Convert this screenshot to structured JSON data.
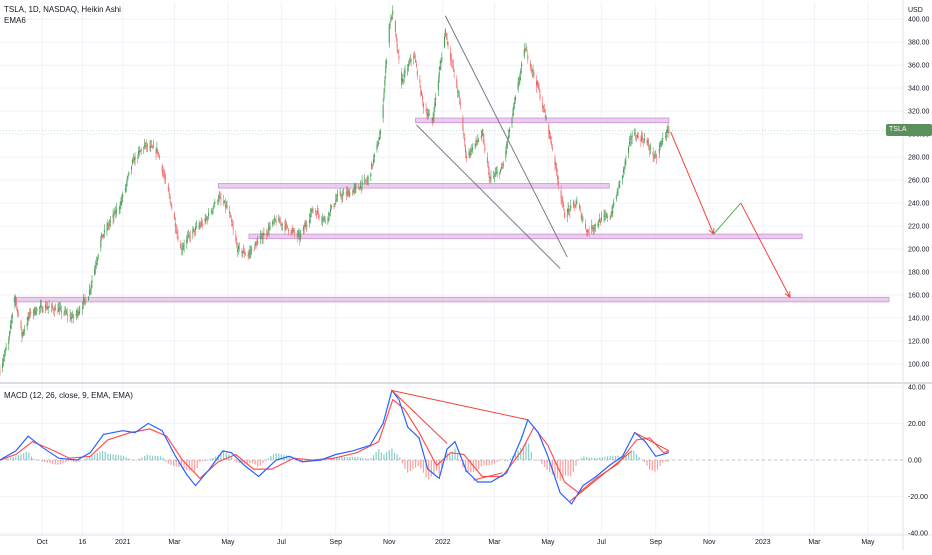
{
  "header": {
    "symbol_line": "TSLA, 1D, NASDAQ, Heikin Ashi",
    "ema_label": "EMA6",
    "macd_label": "MACD (12, 26, close, 9, EMA, EMA)"
  },
  "price_badge": {
    "symbol": "TSLA",
    "value": "303.35",
    "value_num": 303.35
  },
  "colors": {
    "up": "#3f9b4e",
    "down": "#ef6b6b",
    "zone_fill": "#e1bee7",
    "zone_stroke": "#ce93d8",
    "trend_line": "#787b86",
    "projection": "#f44336",
    "projection_up": "#4caf50",
    "macd_line": "#2962ff",
    "signal_line": "#ff5252",
    "grid": "#f0f3fa"
  },
  "chart_data": {
    "type": "candlestick",
    "chart_style": "Heikin Ashi",
    "currency_label": "USD",
    "price_axis": {
      "range": [
        86,
        415
      ],
      "ticks": [
        100,
        120,
        140,
        160,
        180,
        200,
        220,
        240,
        260,
        280,
        300,
        320,
        340,
        360,
        380,
        400
      ],
      "tick_labels": [
        "100.00",
        "120.00",
        "140.00",
        "160.00",
        "180.00",
        "200.00",
        "220.00",
        "240.00",
        "260.00",
        "280.00",
        "300.00",
        "320.00",
        "340.00",
        "360.00",
        "380.00",
        "400.00"
      ]
    },
    "time_axis": {
      "range": [
        "2020-08-14",
        "2023-06-10"
      ],
      "ticks": [
        {
          "date": "2020-10-01",
          "label": "Oct"
        },
        {
          "date": "2020-11-16",
          "label": "16"
        },
        {
          "date": "2021-01-01",
          "label": "2021"
        },
        {
          "date": "2021-03-01",
          "label": "Mar"
        },
        {
          "date": "2021-05-01",
          "label": "May"
        },
        {
          "date": "2021-07-01",
          "label": "Jul"
        },
        {
          "date": "2021-09-01",
          "label": "Sep"
        },
        {
          "date": "2021-11-01",
          "label": "Nov"
        },
        {
          "date": "2022-01-01",
          "label": "2022"
        },
        {
          "date": "2022-03-01",
          "label": "Mar"
        },
        {
          "date": "2022-05-01",
          "label": "May"
        },
        {
          "date": "2022-07-01",
          "label": "Jul"
        },
        {
          "date": "2022-09-01",
          "label": "Sep"
        },
        {
          "date": "2022-11-01",
          "label": "Nov"
        },
        {
          "date": "2023-01-01",
          "label": "2023"
        },
        {
          "date": "2023-03-01",
          "label": "Mar"
        },
        {
          "date": "2023-05-01",
          "label": "May"
        }
      ]
    },
    "price_path": [
      [
        "2020-08-14",
        95
      ],
      [
        "2020-08-24",
        120
      ],
      [
        "2020-08-31",
        160
      ],
      [
        "2020-09-08",
        125
      ],
      [
        "2020-09-18",
        145
      ],
      [
        "2020-10-05",
        150
      ],
      [
        "2020-10-20",
        147
      ],
      [
        "2020-11-06",
        140
      ],
      [
        "2020-11-23",
        160
      ],
      [
        "2020-12-08",
        210
      ],
      [
        "2020-12-30",
        240
      ],
      [
        "2021-01-12",
        275
      ],
      [
        "2021-01-26",
        290
      ],
      [
        "2021-02-10",
        285
      ],
      [
        "2021-02-25",
        240
      ],
      [
        "2021-03-08",
        200
      ],
      [
        "2021-03-22",
        215
      ],
      [
        "2021-04-06",
        225
      ],
      [
        "2021-04-20",
        245
      ],
      [
        "2021-05-01",
        235
      ],
      [
        "2021-05-12",
        200
      ],
      [
        "2021-05-24",
        195
      ],
      [
        "2021-06-08",
        210
      ],
      [
        "2021-06-25",
        225
      ],
      [
        "2021-07-06",
        220
      ],
      [
        "2021-07-22",
        210
      ],
      [
        "2021-08-06",
        235
      ],
      [
        "2021-08-20",
        225
      ],
      [
        "2021-09-03",
        245
      ],
      [
        "2021-09-20",
        250
      ],
      [
        "2021-10-08",
        260
      ],
      [
        "2021-10-22",
        300
      ],
      [
        "2021-11-01",
        395
      ],
      [
        "2021-11-05",
        405
      ],
      [
        "2021-11-15",
        345
      ],
      [
        "2021-11-29",
        370
      ],
      [
        "2021-12-10",
        325
      ],
      [
        "2021-12-20",
        310
      ],
      [
        "2022-01-04",
        390
      ],
      [
        "2022-01-20",
        330
      ],
      [
        "2022-01-28",
        280
      ],
      [
        "2022-02-15",
        300
      ],
      [
        "2022-02-24",
        260
      ],
      [
        "2022-03-10",
        270
      ],
      [
        "2022-03-25",
        330
      ],
      [
        "2022-04-05",
        375
      ],
      [
        "2022-04-20",
        340
      ],
      [
        "2022-05-03",
        300
      ],
      [
        "2022-05-20",
        230
      ],
      [
        "2022-06-03",
        240
      ],
      [
        "2022-06-15",
        215
      ],
      [
        "2022-06-30",
        225
      ],
      [
        "2022-07-12",
        230
      ],
      [
        "2022-07-25",
        265
      ],
      [
        "2022-08-05",
        300
      ],
      [
        "2022-08-20",
        295
      ],
      [
        "2022-09-01",
        278
      ],
      [
        "2022-09-10",
        298
      ],
      [
        "2022-09-16",
        303
      ]
    ],
    "support_resistance_zones": [
      {
        "from": "2021-12-01",
        "to": "2022-09-16",
        "low": 310,
        "high": 314
      },
      {
        "from": "2021-04-20",
        "to": "2022-07-10",
        "low": 253,
        "high": 257
      },
      {
        "from": "2021-05-25",
        "to": "2023-02-15",
        "low": 209,
        "high": 213
      },
      {
        "from": "2020-08-30",
        "to": "2023-05-25",
        "low": 154,
        "high": 158
      }
    ],
    "trend_lines": [
      {
        "from": [
          "2021-12-02",
          308
        ],
        "to": [
          "2022-05-15",
          183
        ]
      },
      {
        "from": [
          "2022-01-04",
          403
        ],
        "to": [
          "2022-05-23",
          193
        ]
      }
    ],
    "projection_path": [
      [
        "2022-09-18",
        302
      ],
      [
        "2022-11-06",
        213
      ],
      [
        "2022-12-07",
        240
      ],
      [
        "2023-02-01",
        158
      ]
    ],
    "projection_up_segment": [
      [
        "2022-11-06",
        213
      ],
      [
        "2022-12-07",
        240
      ]
    ],
    "macd_panel": {
      "axis_range": [
        -41,
        41
      ],
      "ticks": [
        40,
        20,
        0,
        -20,
        -40
      ],
      "tick_labels": [
        "40.00",
        "20.00",
        "0.00",
        "-20.00",
        "-40.00"
      ],
      "macd": [
        [
          "2020-08-14",
          0
        ],
        [
          "2020-09-01",
          5
        ],
        [
          "2020-09-15",
          13
        ],
        [
          "2020-10-01",
          7
        ],
        [
          "2020-10-20",
          1
        ],
        [
          "2020-11-10",
          0
        ],
        [
          "2020-11-25",
          4
        ],
        [
          "2020-12-10",
          14
        ],
        [
          "2021-01-01",
          16
        ],
        [
          "2021-01-15",
          15
        ],
        [
          "2021-01-30",
          20
        ],
        [
          "2021-02-15",
          16
        ],
        [
          "2021-03-01",
          3
        ],
        [
          "2021-03-15",
          -8
        ],
        [
          "2021-03-25",
          -14
        ],
        [
          "2021-04-10",
          -5
        ],
        [
          "2021-04-25",
          5
        ],
        [
          "2021-05-05",
          4
        ],
        [
          "2021-05-20",
          -3
        ],
        [
          "2021-06-05",
          -9
        ],
        [
          "2021-06-25",
          0
        ],
        [
          "2021-07-10",
          2
        ],
        [
          "2021-07-25",
          -1
        ],
        [
          "2021-08-15",
          0
        ],
        [
          "2021-09-01",
          3
        ],
        [
          "2021-09-20",
          5
        ],
        [
          "2021-10-10",
          8
        ],
        [
          "2021-10-25",
          20
        ],
        [
          "2021-11-04",
          38
        ],
        [
          "2021-11-12",
          33
        ],
        [
          "2021-11-22",
          18
        ],
        [
          "2021-12-05",
          12
        ],
        [
          "2021-12-15",
          -5
        ],
        [
          "2021-12-28",
          -10
        ],
        [
          "2022-01-06",
          6
        ],
        [
          "2022-01-15",
          10
        ],
        [
          "2022-01-28",
          -6
        ],
        [
          "2022-02-10",
          -12
        ],
        [
          "2022-02-25",
          -12
        ],
        [
          "2022-03-15",
          -7
        ],
        [
          "2022-04-01",
          12
        ],
        [
          "2022-04-08",
          22
        ],
        [
          "2022-04-20",
          15
        ],
        [
          "2022-05-01",
          2
        ],
        [
          "2022-05-15",
          -18
        ],
        [
          "2022-05-28",
          -24
        ],
        [
          "2022-06-10",
          -14
        ],
        [
          "2022-06-25",
          -9
        ],
        [
          "2022-07-10",
          -3
        ],
        [
          "2022-07-25",
          2
        ],
        [
          "2022-08-08",
          15
        ],
        [
          "2022-08-20",
          10
        ],
        [
          "2022-09-01",
          2
        ],
        [
          "2022-09-16",
          4
        ]
      ],
      "signal": [
        [
          "2020-08-14",
          0
        ],
        [
          "2020-09-01",
          3
        ],
        [
          "2020-09-20",
          10
        ],
        [
          "2020-10-10",
          6
        ],
        [
          "2020-11-01",
          1
        ],
        [
          "2020-11-25",
          2
        ],
        [
          "2020-12-15",
          11
        ],
        [
          "2021-01-10",
          15
        ],
        [
          "2021-02-01",
          17
        ],
        [
          "2021-02-20",
          13
        ],
        [
          "2021-03-10",
          0
        ],
        [
          "2021-03-30",
          -10
        ],
        [
          "2021-04-20",
          -1
        ],
        [
          "2021-05-10",
          3
        ],
        [
          "2021-05-30",
          -5
        ],
        [
          "2021-06-20",
          -5
        ],
        [
          "2021-07-15",
          1
        ],
        [
          "2021-08-05",
          0
        ],
        [
          "2021-08-30",
          1
        ],
        [
          "2021-09-25",
          4
        ],
        [
          "2021-10-20",
          10
        ],
        [
          "2021-11-05",
          33
        ],
        [
          "2021-11-18",
          28
        ],
        [
          "2021-12-05",
          15
        ],
        [
          "2021-12-25",
          -3
        ],
        [
          "2022-01-10",
          4
        ],
        [
          "2022-01-25",
          3
        ],
        [
          "2022-02-15",
          -9
        ],
        [
          "2022-03-10",
          -9
        ],
        [
          "2022-04-01",
          5
        ],
        [
          "2022-04-15",
          18
        ],
        [
          "2022-05-01",
          8
        ],
        [
          "2022-05-20",
          -12
        ],
        [
          "2022-06-05",
          -18
        ],
        [
          "2022-06-25",
          -10
        ],
        [
          "2022-07-20",
          -2
        ],
        [
          "2022-08-10",
          11
        ],
        [
          "2022-08-25",
          12
        ],
        [
          "2022-09-10",
          4
        ],
        [
          "2022-09-16",
          5
        ]
      ],
      "divergence_lines": [
        {
          "from": [
            "2021-11-04",
            38
          ],
          "to": [
            "2022-04-08",
            22
          ]
        },
        {
          "from": [
            "2021-11-04",
            38
          ],
          "to": [
            "2022-01-06",
            9
          ]
        },
        {
          "from": [
            "2022-02-05",
            -11
          ],
          "to": [
            "2022-03-10",
            -7
          ]
        },
        {
          "from": [
            "2022-05-25",
            -23
          ],
          "to": [
            "2022-08-05",
            5
          ]
        },
        {
          "from": [
            "2022-08-08",
            15
          ],
          "to": [
            "2022-09-16",
            5
          ]
        }
      ]
    }
  }
}
